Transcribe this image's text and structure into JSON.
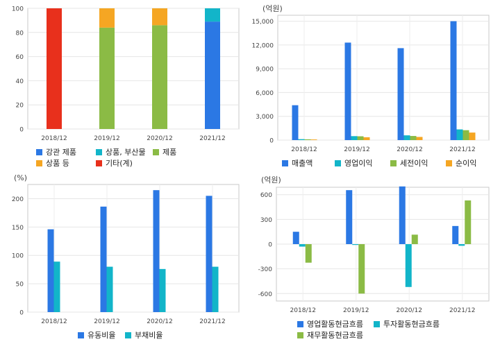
{
  "chart_data": [
    {
      "type": "bar",
      "stacked": true,
      "categories": [
        "2018/12",
        "2019/12",
        "2020/12",
        "2021/12"
      ],
      "ylim": [
        0,
        100
      ],
      "yticks": [
        "0",
        "20",
        "40",
        "60",
        "80",
        "100"
      ],
      "series": [
        {
          "name": "강관 제품",
          "color": "#2b78e4",
          "values": [
            0,
            0,
            0,
            89
          ]
        },
        {
          "name": "상품, 부산물",
          "color": "#12b5c9",
          "values": [
            0,
            0,
            0,
            11
          ]
        },
        {
          "name": "제품",
          "color": "#8bbb45",
          "values": [
            0,
            84,
            86,
            0
          ]
        },
        {
          "name": "상품 등",
          "color": "#f5a623",
          "values": [
            0,
            16,
            14,
            0
          ]
        },
        {
          "name": "기타(계)",
          "color": "#e8301c",
          "values": [
            100,
            0,
            0,
            0
          ]
        }
      ],
      "legend": "bottom",
      "grid": true
    },
    {
      "type": "bar",
      "unit": "(억원)",
      "categories": [
        "2018/12",
        "2019/12",
        "2020/12",
        "2021/12"
      ],
      "ylim": [
        0,
        15750
      ],
      "yticks": [
        "0",
        "3,000",
        "6,000",
        "9,000",
        "12,000",
        "15,000"
      ],
      "series": [
        {
          "name": "매출액",
          "color": "#2b78e4",
          "values": [
            4400,
            12300,
            11600,
            15000
          ]
        },
        {
          "name": "영업이익",
          "color": "#12b5c9",
          "values": [
            120,
            500,
            600,
            1350
          ]
        },
        {
          "name": "세전이익",
          "color": "#8bbb45",
          "values": [
            100,
            480,
            520,
            1250
          ]
        },
        {
          "name": "순이익",
          "color": "#f5a623",
          "values": [
            80,
            360,
            400,
            950
          ]
        }
      ],
      "legend": "bottom",
      "grid": true
    },
    {
      "type": "bar",
      "unit": "(%)",
      "categories": [
        "2018/12",
        "2019/12",
        "2020/12",
        "2021/12"
      ],
      "ylim": [
        0,
        225
      ],
      "yticks": [
        "0",
        "50",
        "100",
        "150",
        "200"
      ],
      "series": [
        {
          "name": "유동비율",
          "color": "#2b78e4",
          "values": [
            146,
            186,
            215,
            205
          ]
        },
        {
          "name": "부채비율",
          "color": "#12b5c9",
          "values": [
            89,
            80,
            76,
            80
          ]
        }
      ],
      "legend": "bottom",
      "grid": true
    },
    {
      "type": "bar",
      "unit": "(억원)",
      "categories": [
        "2018/12",
        "2019/12",
        "2020/12",
        "2021/12"
      ],
      "ylim": [
        -690,
        690
      ],
      "yticks": [
        "-600",
        "-300",
        "0",
        "300",
        "600"
      ],
      "series": [
        {
          "name": "영업활동현금흐름",
          "color": "#2b78e4",
          "values": [
            150,
            655,
            700,
            220
          ]
        },
        {
          "name": "투자활동현금흐름",
          "color": "#12b5c9",
          "values": [
            -30,
            -10,
            -520,
            -20
          ]
        },
        {
          "name": "재무활동현금흐름",
          "color": "#8bbb45",
          "values": [
            -225,
            -600,
            115,
            530
          ]
        }
      ],
      "legend": "bottom",
      "grid": true
    }
  ]
}
